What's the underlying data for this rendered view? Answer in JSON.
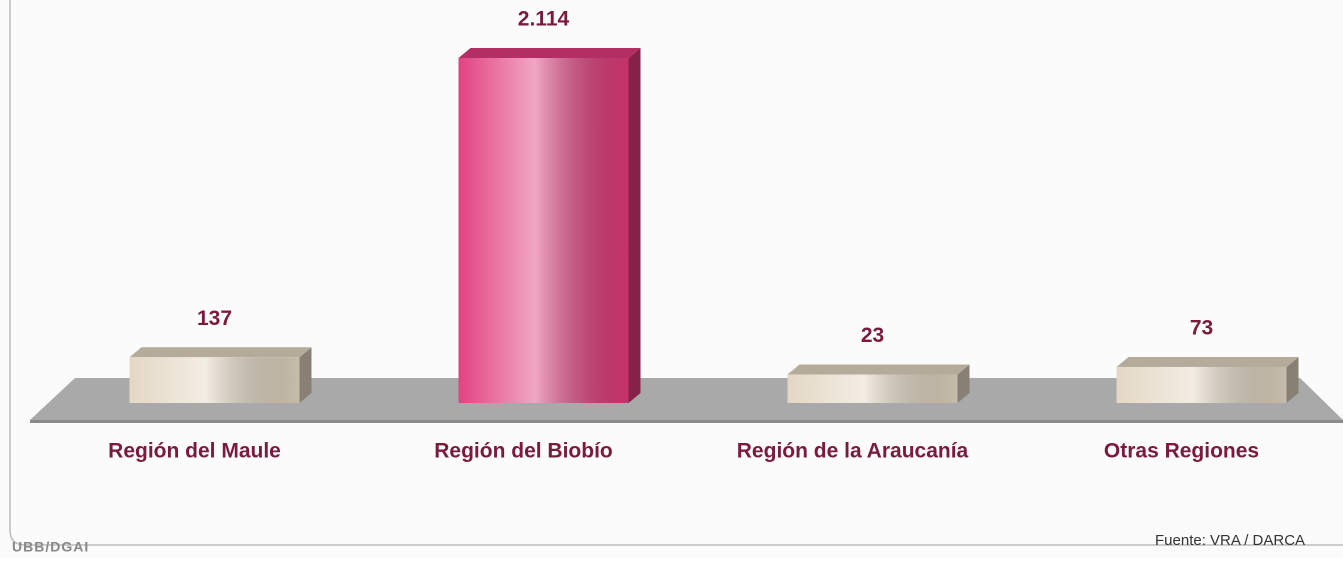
{
  "chart_data": {
    "type": "bar",
    "categories": [
      "Región del Maule",
      "Región del Biobío",
      "Región de la Araucanía",
      "Otras Regiones"
    ],
    "values": [
      137,
      2114,
      23,
      73
    ],
    "value_labels": [
      "137",
      "2.114",
      "23",
      "73"
    ],
    "colors": [
      "#e2d6c2",
      "#e0397a",
      "#e2d6c2",
      "#e2d6c2"
    ],
    "footer_left": "UBB/DGAI",
    "source": "Fuente: VRA / DARCA"
  }
}
